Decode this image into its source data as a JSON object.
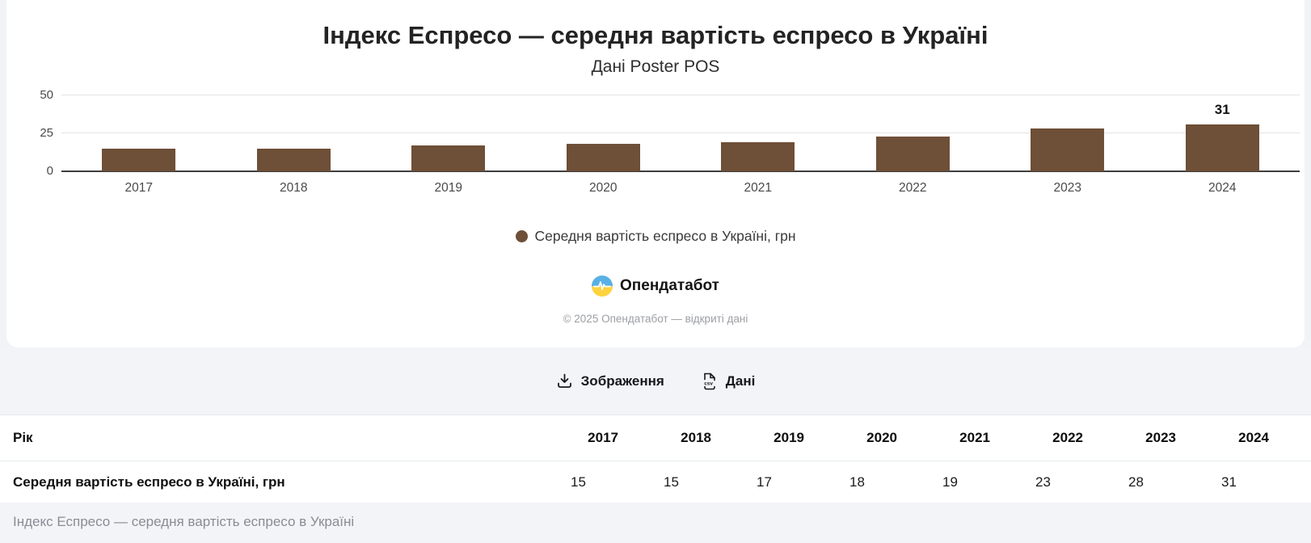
{
  "chart_data": {
    "type": "bar",
    "title": "Індекс Еспресо — середня вартість еспресо в Україні",
    "subtitle": "Дані Poster POS",
    "categories": [
      "2017",
      "2018",
      "2019",
      "2020",
      "2021",
      "2022",
      "2023",
      "2024"
    ],
    "values": [
      15,
      15,
      17,
      18,
      19,
      23,
      28,
      31
    ],
    "series_name": "Середня вартість еспресо в Україні, грн",
    "ylim": [
      0,
      50
    ],
    "yticks": [
      0,
      25,
      50
    ],
    "grid": "horizontal",
    "legend_position": "bottom",
    "bar_color": "#6E4F37",
    "annotated_point": {
      "category": "2024",
      "label": "31"
    }
  },
  "brand": {
    "name": "Опендатабот",
    "logo_top_color": "#58b0e6",
    "logo_bottom_color": "#ffd23f"
  },
  "copyright": "© 2025 Опендатабот — відкриті дані",
  "toolbar": {
    "image_button": "Зображення",
    "data_button": "Дані",
    "csv_icon_text": "csv"
  },
  "table": {
    "header_label": "Рік",
    "columns": [
      "2017",
      "2018",
      "2019",
      "2020",
      "2021",
      "2022",
      "2023",
      "2024"
    ],
    "rows": [
      {
        "label": "Середня вартість еспресо в Україні, грн",
        "values": [
          "15",
          "15",
          "17",
          "18",
          "19",
          "23",
          "28",
          "31"
        ]
      }
    ]
  },
  "footer": {
    "caption": "Індекс Еспресо — середня вартість еспресо в Україні"
  },
  "decor": {
    "top_cropped_icons": [
      "dot",
      "dot",
      "dot",
      "dot",
      "dot"
    ]
  }
}
